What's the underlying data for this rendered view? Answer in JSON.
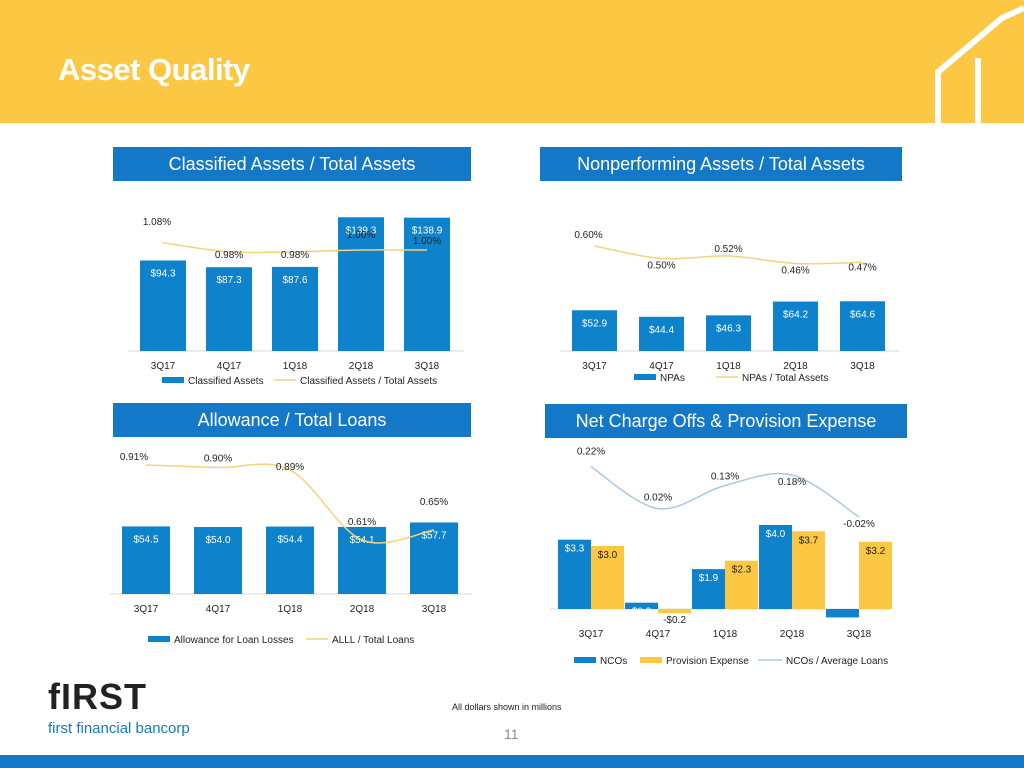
{
  "page": {
    "title": "Asset Quality",
    "note": "All dollars shown in millions",
    "page_number": "11"
  },
  "logo": {
    "word": "fIRST",
    "subtitle": "first financial bancorp"
  },
  "colors": {
    "header": "#fcc844",
    "blue": "#1478c8",
    "bar": "#0f82cc",
    "gold": "#fcc844",
    "line_gold": "#f3d27a",
    "line_blue": "#a9c8e2"
  },
  "chart_data": [
    {
      "id": "classified",
      "type": "bar",
      "title": "Classified Assets / Total Assets",
      "categories": [
        "3Q17",
        "4Q17",
        "1Q18",
        "2Q18",
        "3Q18"
      ],
      "series": [
        {
          "name": "Classified Assets",
          "kind": "bar",
          "values": [
            94.3,
            87.3,
            87.6,
            139.3,
            138.9
          ],
          "labels": [
            "$94.3",
            "$87.3",
            "$87.6",
            "$139.3",
            "$138.9"
          ]
        },
        {
          "name": "Classified Assets / Total Assets",
          "kind": "line",
          "values": [
            1.08,
            0.98,
            0.98,
            1.0,
            1.0
          ],
          "labels": [
            "1.08%",
            "0.98%",
            "0.98%",
            "1.00%",
            "1.00%"
          ]
        }
      ]
    },
    {
      "id": "npa",
      "type": "bar",
      "title": "Nonperforming Assets / Total Assets",
      "categories": [
        "3Q17",
        "4Q17",
        "1Q18",
        "2Q18",
        "3Q18"
      ],
      "series": [
        {
          "name": "NPAs",
          "kind": "bar",
          "values": [
            52.9,
            44.4,
            46.3,
            64.2,
            64.6
          ],
          "labels": [
            "$52.9",
            "$44.4",
            "$46.3",
            "$64.2",
            "$64.6"
          ]
        },
        {
          "name": "NPAs / Total Assets",
          "kind": "line",
          "values": [
            0.6,
            0.5,
            0.52,
            0.46,
            0.47
          ],
          "labels": [
            "0.60%",
            "0.50%",
            "0.52%",
            "0.46%",
            "0.47%"
          ]
        }
      ]
    },
    {
      "id": "allowance",
      "type": "bar",
      "title": "Allowance / Total Loans",
      "categories": [
        "3Q17",
        "4Q17",
        "1Q18",
        "2Q18",
        "3Q18"
      ],
      "series": [
        {
          "name": "Allowance for Loan Losses",
          "kind": "bar",
          "values": [
            54.5,
            54.0,
            54.4,
            54.1,
            57.7
          ],
          "labels": [
            "$54.5",
            "$54.0",
            "$54.4",
            "$54.1",
            "$57.7"
          ]
        },
        {
          "name": "ALLL / Total Loans",
          "kind": "line",
          "values": [
            0.91,
            0.9,
            0.89,
            0.61,
            0.65
          ],
          "labels": [
            "0.91%",
            "0.90%",
            "0.89%",
            "0.61%",
            "0.65%"
          ]
        }
      ]
    },
    {
      "id": "nco",
      "type": "bar",
      "title": "Net Charge Offs & Provision Expense",
      "categories": [
        "3Q17",
        "4Q17",
        "1Q18",
        "2Q18",
        "3Q18"
      ],
      "series": [
        {
          "name": "NCOs",
          "kind": "bar",
          "values": [
            3.3,
            0.3,
            1.9,
            4.0,
            -0.4
          ],
          "labels": [
            "$3.3",
            "$0.3",
            "$1.9",
            "$4.0",
            "-$0.4"
          ]
        },
        {
          "name": "Provision Expense",
          "kind": "bar",
          "values": [
            3.0,
            -0.2,
            2.3,
            3.7,
            3.2
          ],
          "labels": [
            "$3.0",
            "-$0.2",
            "$2.3",
            "$3.7",
            "$3.2"
          ]
        },
        {
          "name": "NCOs / Average Loans",
          "kind": "line",
          "values": [
            0.22,
            0.02,
            0.13,
            0.18,
            -0.02
          ],
          "labels": [
            "0.22%",
            "0.02%",
            "0.13%",
            "0.18%",
            "-0.02%"
          ]
        }
      ]
    }
  ]
}
